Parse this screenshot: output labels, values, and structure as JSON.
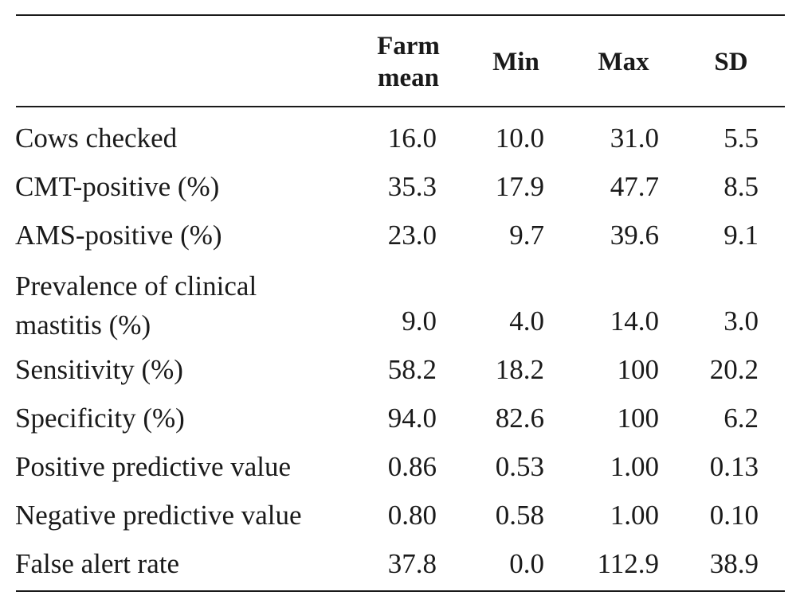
{
  "table": {
    "headers": {
      "label": "",
      "farm_mean_line1": "Farm",
      "farm_mean_line2": "mean",
      "min": "Min",
      "max": "Max",
      "sd": "SD"
    },
    "rows": [
      {
        "label": "Cows checked",
        "mean": "16.0",
        "min": "10.0",
        "max": "31.0",
        "sd": "5.5"
      },
      {
        "label": "CMT-positive (%)",
        "mean": "35.3",
        "min": "17.9",
        "max": "47.7",
        "sd": "8.5"
      },
      {
        "label": "AMS-positive (%)",
        "mean": "23.0",
        "min": "9.7",
        "max": "39.6",
        "sd": "9.1"
      },
      {
        "label_line1": "Prevalence of clinical",
        "label_line2": "mastitis (%)",
        "mean": "9.0",
        "min": "4.0",
        "max": "14.0",
        "sd": "3.0"
      },
      {
        "label": "Sensitivity (%)",
        "mean": "58.2",
        "min": "18.2",
        "max": "100",
        "sd": "20.2"
      },
      {
        "label": "Specificity (%)",
        "mean": "94.0",
        "min": "82.6",
        "max": "100",
        "sd": "6.2"
      },
      {
        "label": "Positive predictive value",
        "mean": "0.86",
        "min": "0.53",
        "max": "1.00",
        "sd": "0.13"
      },
      {
        "label": "Negative predictive value",
        "mean": "0.80",
        "min": "0.58",
        "max": "1.00",
        "sd": "0.10"
      },
      {
        "label": "False alert rate",
        "mean": "37.8",
        "min": "0.0",
        "max": "112.9",
        "sd": "38.9"
      }
    ]
  }
}
